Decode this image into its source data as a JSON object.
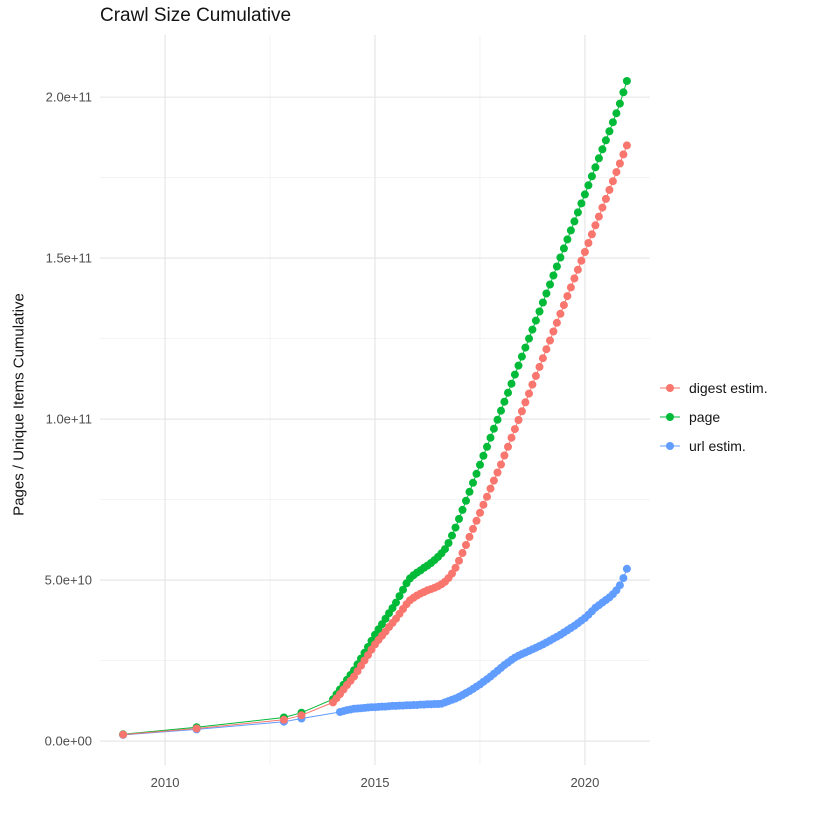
{
  "chart_data": {
    "type": "line",
    "title": "Crawl Size Cumulative",
    "xlabel": "",
    "ylabel": "Pages / Unique Items Cumulative",
    "y_unit_multiplier": 1000000000,
    "x_domain": [
      2008.45,
      2021.55
    ],
    "y_domain_e9": [
      -7.45,
      219.3
    ],
    "x_ticks": [
      {
        "value": 2010,
        "label": "2010"
      },
      {
        "value": 2015,
        "label": "2015"
      },
      {
        "value": 2020,
        "label": "2020"
      }
    ],
    "x_minor": [
      2012.5,
      2017.5
    ],
    "y_ticks": [
      {
        "value": 0,
        "label": "0.0e+00"
      },
      {
        "value": 50,
        "label": "5.0e+10"
      },
      {
        "value": 100,
        "label": "1.0e+11"
      },
      {
        "value": 150,
        "label": "1.5e+11"
      },
      {
        "value": 200,
        "label": "2.0e+11"
      }
    ],
    "y_minor": [
      25,
      75,
      125,
      175
    ],
    "grid": {
      "major_color": "#e4e4e4",
      "minor_color": "#f2f2f2"
    },
    "point_radius": 4,
    "legend_order": [
      "digest",
      "page",
      "url"
    ],
    "series": [
      {
        "id": "url",
        "name": "url estim.",
        "color": "#619CFF",
        "points": [
          [
            2009.0,
            1.9
          ],
          [
            2010.75,
            3.6
          ],
          [
            2012.83,
            6.0
          ],
          [
            2013.25,
            7.0
          ],
          [
            2014.167,
            9.0
          ],
          [
            2014.25,
            9.3
          ],
          [
            2014.333,
            9.6
          ],
          [
            2014.417,
            9.8
          ],
          [
            2014.5,
            10.0
          ],
          [
            2014.583,
            10.1
          ],
          [
            2014.667,
            10.2
          ],
          [
            2014.75,
            10.3
          ],
          [
            2014.833,
            10.4
          ],
          [
            2014.917,
            10.5
          ],
          [
            2015.0,
            10.5
          ],
          [
            2015.083,
            10.6
          ],
          [
            2015.167,
            10.7
          ],
          [
            2015.25,
            10.7
          ],
          [
            2015.333,
            10.8
          ],
          [
            2015.417,
            10.9
          ],
          [
            2015.5,
            10.9
          ],
          [
            2015.583,
            11.0
          ],
          [
            2015.667,
            11.0
          ],
          [
            2015.75,
            11.1
          ],
          [
            2015.833,
            11.1
          ],
          [
            2015.917,
            11.2
          ],
          [
            2016.0,
            11.2
          ],
          [
            2016.083,
            11.3
          ],
          [
            2016.167,
            11.3
          ],
          [
            2016.25,
            11.4
          ],
          [
            2016.333,
            11.4
          ],
          [
            2016.417,
            11.5
          ],
          [
            2016.5,
            11.5
          ],
          [
            2016.583,
            11.6
          ],
          [
            2016.667,
            12.0
          ],
          [
            2016.75,
            12.4
          ],
          [
            2016.833,
            12.8
          ],
          [
            2016.917,
            13.2
          ],
          [
            2017.0,
            13.7
          ],
          [
            2017.083,
            14.3
          ],
          [
            2017.167,
            14.9
          ],
          [
            2017.25,
            15.5
          ],
          [
            2017.333,
            16.2
          ],
          [
            2017.417,
            16.9
          ],
          [
            2017.5,
            17.6
          ],
          [
            2017.583,
            18.4
          ],
          [
            2017.667,
            19.2
          ],
          [
            2017.75,
            20.0
          ],
          [
            2017.833,
            20.9
          ],
          [
            2017.917,
            21.8
          ],
          [
            2018.0,
            22.7
          ],
          [
            2018.083,
            23.6
          ],
          [
            2018.167,
            24.4
          ],
          [
            2018.25,
            25.2
          ],
          [
            2018.333,
            25.9
          ],
          [
            2018.417,
            26.5
          ],
          [
            2018.5,
            27.0
          ],
          [
            2018.583,
            27.5
          ],
          [
            2018.667,
            28.0
          ],
          [
            2018.75,
            28.5
          ],
          [
            2018.833,
            29.0
          ],
          [
            2018.917,
            29.5
          ],
          [
            2019.0,
            30.0
          ],
          [
            2019.083,
            30.6
          ],
          [
            2019.167,
            31.2
          ],
          [
            2019.25,
            31.8
          ],
          [
            2019.333,
            32.4
          ],
          [
            2019.417,
            33.0
          ],
          [
            2019.5,
            33.7
          ],
          [
            2019.583,
            34.4
          ],
          [
            2019.667,
            35.1
          ],
          [
            2019.75,
            35.8
          ],
          [
            2019.833,
            36.6
          ],
          [
            2019.917,
            37.4
          ],
          [
            2020.0,
            38.2
          ],
          [
            2020.083,
            39.2
          ],
          [
            2020.167,
            40.3
          ],
          [
            2020.25,
            41.4
          ],
          [
            2020.333,
            42.2
          ],
          [
            2020.417,
            43.0
          ],
          [
            2020.5,
            43.8
          ],
          [
            2020.583,
            44.6
          ],
          [
            2020.667,
            45.6
          ],
          [
            2020.75,
            46.8
          ],
          [
            2020.833,
            48.4
          ],
          [
            2020.917,
            50.6
          ],
          [
            2021.0,
            53.5
          ]
        ]
      },
      {
        "id": "page",
        "name": "page",
        "color": "#00BA38",
        "points": [
          [
            2009.0,
            2.1
          ],
          [
            2010.75,
            4.3
          ],
          [
            2012.83,
            7.3
          ],
          [
            2013.25,
            8.8
          ],
          [
            2014.0,
            13.0
          ],
          [
            2014.083,
            14.5
          ],
          [
            2014.167,
            16.0
          ],
          [
            2014.25,
            17.5
          ],
          [
            2014.333,
            19.0
          ],
          [
            2014.417,
            20.5
          ],
          [
            2014.5,
            22.0
          ],
          [
            2014.583,
            23.8
          ],
          [
            2014.667,
            25.6
          ],
          [
            2014.75,
            27.4
          ],
          [
            2014.833,
            29.2
          ],
          [
            2014.917,
            31.1
          ],
          [
            2015.0,
            33.0
          ],
          [
            2015.083,
            34.7
          ],
          [
            2015.167,
            36.3
          ],
          [
            2015.25,
            38.0
          ],
          [
            2015.333,
            39.7
          ],
          [
            2015.417,
            41.3
          ],
          [
            2015.5,
            43.0
          ],
          [
            2015.583,
            45.0
          ],
          [
            2015.667,
            47.0
          ],
          [
            2015.75,
            49.0
          ],
          [
            2015.833,
            50.5
          ],
          [
            2015.917,
            51.5
          ],
          [
            2016.0,
            52.3
          ],
          [
            2016.083,
            53.0
          ],
          [
            2016.167,
            53.8
          ],
          [
            2016.25,
            54.5
          ],
          [
            2016.333,
            55.3
          ],
          [
            2016.417,
            56.2
          ],
          [
            2016.5,
            57.2
          ],
          [
            2016.583,
            58.3
          ],
          [
            2016.667,
            59.6
          ],
          [
            2016.75,
            61.5
          ],
          [
            2016.833,
            63.8
          ],
          [
            2016.917,
            66.3
          ],
          [
            2017.0,
            69.0
          ],
          [
            2017.083,
            71.8
          ],
          [
            2017.167,
            74.6
          ],
          [
            2017.25,
            77.4
          ],
          [
            2017.333,
            80.2
          ],
          [
            2017.417,
            83.0
          ],
          [
            2017.5,
            85.8
          ],
          [
            2017.583,
            88.6
          ],
          [
            2017.667,
            91.4
          ],
          [
            2017.75,
            94.2
          ],
          [
            2017.833,
            97.0
          ],
          [
            2017.917,
            99.8
          ],
          [
            2018.0,
            102.6
          ],
          [
            2018.083,
            105.4
          ],
          [
            2018.167,
            108.2
          ],
          [
            2018.25,
            111.0
          ],
          [
            2018.333,
            113.8
          ],
          [
            2018.417,
            116.6
          ],
          [
            2018.5,
            119.4
          ],
          [
            2018.583,
            122.2
          ],
          [
            2018.667,
            125.0
          ],
          [
            2018.75,
            127.8
          ],
          [
            2018.833,
            130.6
          ],
          [
            2018.917,
            133.4
          ],
          [
            2019.0,
            136.2
          ],
          [
            2019.083,
            139.0
          ],
          [
            2019.167,
            141.8
          ],
          [
            2019.25,
            144.6
          ],
          [
            2019.333,
            147.4
          ],
          [
            2019.417,
            150.2
          ],
          [
            2019.5,
            153.0
          ],
          [
            2019.583,
            155.8
          ],
          [
            2019.667,
            158.6
          ],
          [
            2019.75,
            161.4
          ],
          [
            2019.833,
            164.2
          ],
          [
            2019.917,
            167.0
          ],
          [
            2020.0,
            169.8
          ],
          [
            2020.083,
            172.6
          ],
          [
            2020.167,
            175.4
          ],
          [
            2020.25,
            178.2
          ],
          [
            2020.333,
            181.0
          ],
          [
            2020.417,
            183.8
          ],
          [
            2020.5,
            186.6
          ],
          [
            2020.583,
            189.4
          ],
          [
            2020.667,
            192.2
          ],
          [
            2020.75,
            195.0
          ],
          [
            2020.833,
            198.0
          ],
          [
            2020.917,
            201.5
          ],
          [
            2021.0,
            205.0
          ]
        ]
      },
      {
        "id": "digest",
        "name": "digest estim.",
        "color": "#F8766D",
        "points": [
          [
            2009.0,
            2.0
          ],
          [
            2010.75,
            3.9
          ],
          [
            2012.83,
            6.6
          ],
          [
            2013.25,
            8.0
          ],
          [
            2014.0,
            12.0
          ],
          [
            2014.083,
            13.3
          ],
          [
            2014.167,
            14.6
          ],
          [
            2014.25,
            16.0
          ],
          [
            2014.333,
            17.4
          ],
          [
            2014.417,
            18.7
          ],
          [
            2014.5,
            20.0
          ],
          [
            2014.583,
            21.7
          ],
          [
            2014.667,
            23.4
          ],
          [
            2014.75,
            25.0
          ],
          [
            2014.833,
            26.7
          ],
          [
            2014.917,
            28.4
          ],
          [
            2015.0,
            30.0
          ],
          [
            2015.083,
            31.4
          ],
          [
            2015.167,
            32.7
          ],
          [
            2015.25,
            34.0
          ],
          [
            2015.333,
            35.4
          ],
          [
            2015.417,
            36.7
          ],
          [
            2015.5,
            38.0
          ],
          [
            2015.583,
            39.5
          ],
          [
            2015.667,
            41.0
          ],
          [
            2015.75,
            42.5
          ],
          [
            2015.833,
            43.7
          ],
          [
            2015.917,
            44.5
          ],
          [
            2016.0,
            45.2
          ],
          [
            2016.083,
            45.8
          ],
          [
            2016.167,
            46.3
          ],
          [
            2016.25,
            46.8
          ],
          [
            2016.333,
            47.2
          ],
          [
            2016.417,
            47.6
          ],
          [
            2016.5,
            48.1
          ],
          [
            2016.583,
            48.7
          ],
          [
            2016.667,
            49.5
          ],
          [
            2016.75,
            50.6
          ],
          [
            2016.833,
            52.0
          ],
          [
            2016.917,
            53.8
          ],
          [
            2017.0,
            56.0
          ],
          [
            2017.083,
            58.4
          ],
          [
            2017.167,
            60.9
          ],
          [
            2017.25,
            63.4
          ],
          [
            2017.333,
            65.9
          ],
          [
            2017.417,
            68.4
          ],
          [
            2017.5,
            70.9
          ],
          [
            2017.583,
            73.4
          ],
          [
            2017.667,
            75.9
          ],
          [
            2017.75,
            78.4
          ],
          [
            2017.833,
            80.9
          ],
          [
            2017.917,
            83.4
          ],
          [
            2018.0,
            85.9
          ],
          [
            2018.083,
            88.7
          ],
          [
            2018.167,
            91.4
          ],
          [
            2018.25,
            94.2
          ],
          [
            2018.333,
            96.9
          ],
          [
            2018.417,
            99.7
          ],
          [
            2018.5,
            102.4
          ],
          [
            2018.583,
            105.2
          ],
          [
            2018.667,
            107.9
          ],
          [
            2018.75,
            110.7
          ],
          [
            2018.833,
            113.4
          ],
          [
            2018.917,
            116.2
          ],
          [
            2019.0,
            118.9
          ],
          [
            2019.083,
            121.7
          ],
          [
            2019.167,
            124.4
          ],
          [
            2019.25,
            127.2
          ],
          [
            2019.333,
            129.9
          ],
          [
            2019.417,
            132.7
          ],
          [
            2019.5,
            135.4
          ],
          [
            2019.583,
            138.2
          ],
          [
            2019.667,
            140.9
          ],
          [
            2019.75,
            143.7
          ],
          [
            2019.833,
            146.4
          ],
          [
            2019.917,
            149.2
          ],
          [
            2020.0,
            151.9
          ],
          [
            2020.083,
            154.7
          ],
          [
            2020.167,
            157.4
          ],
          [
            2020.25,
            160.2
          ],
          [
            2020.333,
            162.9
          ],
          [
            2020.417,
            165.7
          ],
          [
            2020.5,
            168.4
          ],
          [
            2020.583,
            171.2
          ],
          [
            2020.667,
            173.9
          ],
          [
            2020.75,
            176.7
          ],
          [
            2020.833,
            179.4
          ],
          [
            2020.917,
            182.2
          ],
          [
            2021.0,
            185.0
          ]
        ]
      }
    ]
  }
}
